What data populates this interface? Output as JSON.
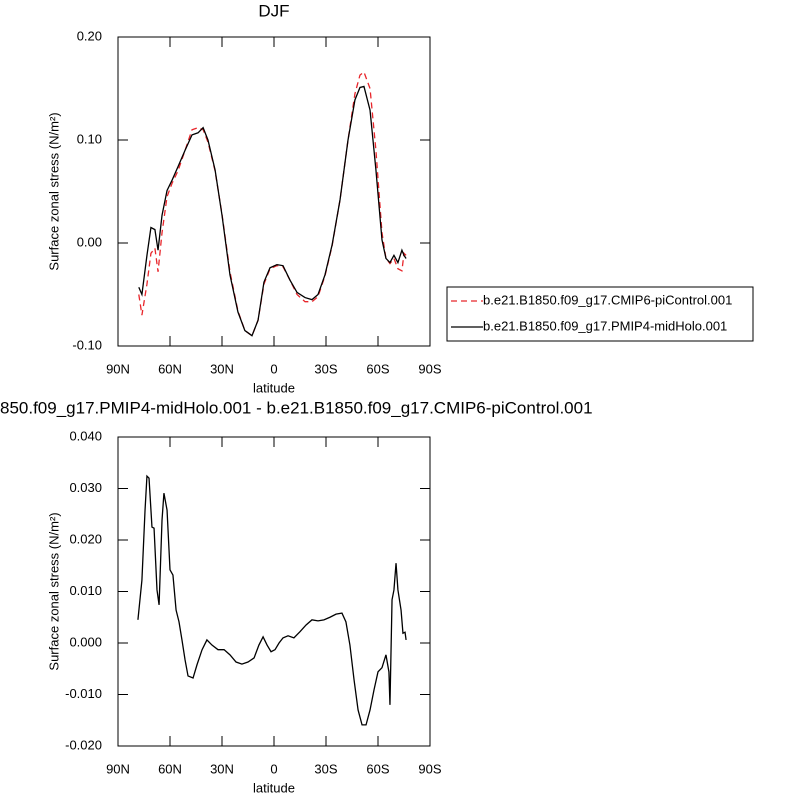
{
  "chart_data": [
    {
      "type": "line",
      "title": "DJF",
      "xlabel": "latitude",
      "ylabel": "Surface zonal stress (N/m²)",
      "x": [
        78,
        76.2,
        73.3,
        71,
        68.7,
        66.9,
        64.6,
        61.7,
        58.8,
        55.4,
        51.3,
        47.3,
        43.8,
        40.9,
        38.1,
        34,
        30,
        25.4,
        20.8,
        16.8,
        12.7,
        9.2,
        5.8,
        2.3,
        -1.7,
        -5.2,
        -9.2,
        -13.3,
        -17.9,
        -21.9,
        -25.4,
        -29.4,
        -33.5,
        -38.1,
        -42.7,
        -46.7,
        -49.6,
        -51.9,
        -55.4,
        -58.8,
        -62.3,
        -64.6,
        -66.9,
        -69.2,
        -71.5,
        -73.8,
        -75,
        -76.2
      ],
      "series": [
        {
          "name": "b.e21.B1850.f09_g17.CMIP6-piControl.001",
          "color": "#e8262b",
          "linestyle": "dashed",
          "values": [
            -0.05,
            -0.07,
            -0.04,
            -0.01,
            -0.005,
            -0.028,
            0.01,
            0.045,
            0.058,
            0.07,
            0.09,
            0.11,
            0.112,
            0.11,
            0.098,
            0.07,
            0.028,
            -0.028,
            -0.066,
            -0.085,
            -0.09,
            -0.075,
            -0.04,
            -0.025,
            -0.022,
            -0.023,
            -0.036,
            -0.05,
            -0.057,
            -0.057,
            -0.052,
            -0.032,
            -0.003,
            0.042,
            0.1,
            0.145,
            0.163,
            0.166,
            0.15,
            0.09,
            0.01,
            -0.015,
            -0.02,
            -0.015,
            -0.025,
            -0.027,
            -0.01,
            -0.012
          ]
        },
        {
          "name": "b.e21.B1850.f09_g17.PMIP4-midHolo.001",
          "color": "#000000",
          "linestyle": "solid",
          "values": [
            -0.043,
            -0.05,
            -0.012,
            0.015,
            0.013,
            -0.007,
            0.027,
            0.051,
            0.061,
            0.074,
            0.09,
            0.105,
            0.107,
            0.112,
            0.1,
            0.071,
            0.027,
            -0.031,
            -0.067,
            -0.085,
            -0.09,
            -0.075,
            -0.038,
            -0.024,
            -0.021,
            -0.022,
            -0.036,
            -0.048,
            -0.053,
            -0.055,
            -0.05,
            -0.031,
            -0.002,
            0.042,
            0.1,
            0.139,
            0.151,
            0.152,
            0.129,
            0.071,
            0.003,
            -0.015,
            -0.019,
            -0.012,
            -0.019,
            -0.007,
            -0.012,
            -0.015
          ]
        }
      ],
      "xlim": [
        90,
        -90
      ],
      "xticks": [
        {
          "value": 90,
          "label": "90N"
        },
        {
          "value": 60,
          "label": "60N"
        },
        {
          "value": 30,
          "label": "30N"
        },
        {
          "value": 0,
          "label": "0"
        },
        {
          "value": -30,
          "label": "30S"
        },
        {
          "value": -60,
          "label": "60S"
        },
        {
          "value": -90,
          "label": "90S"
        }
      ],
      "ylim": [
        -0.1,
        0.2
      ],
      "yticks": [
        {
          "value": -0.1,
          "label": "-0.10"
        },
        {
          "value": 0,
          "label": "0.00"
        },
        {
          "value": 0.1,
          "label": "0.10"
        },
        {
          "value": 0.2,
          "label": "0.20"
        }
      ],
      "legend": "right"
    },
    {
      "type": "line",
      "title": "850.f09_g17.PMIP4-midHolo.001 - b.e21.B1850.f09_g17.CMIP6-piControl.001",
      "xlabel": "latitude",
      "ylabel": "Surface zonal stress (N/m²)",
      "x": [
        78.5,
        76.2,
        74.4,
        73.3,
        72.1,
        70.4,
        69.2,
        67.5,
        66.3,
        64.6,
        63.5,
        61.7,
        60,
        58.3,
        56.5,
        54.8,
        53.1,
        51.3,
        49.6,
        46.7,
        44.4,
        41.5,
        38.7,
        35.8,
        32.3,
        28.8,
        25.4,
        21.9,
        18.5,
        15,
        11.5,
        8.7,
        6.3,
        4,
        1.7,
        -0.6,
        -2.9,
        -5.2,
        -8.1,
        -11.5,
        -15,
        -18.5,
        -21.9,
        -25.4,
        -28.8,
        -32.3,
        -35.8,
        -39.2,
        -41.5,
        -43.8,
        -46.2,
        -48.5,
        -50.8,
        -53.1,
        -55.4,
        -57.7,
        -60,
        -62.3,
        -64.6,
        -66.3,
        -66.9,
        -68.1,
        -69.2,
        -70.4,
        -71.5,
        -73.3,
        -74.4,
        -75.6,
        -76.2
      ],
      "values": [
        0.0045,
        0.0122,
        0.0258,
        0.0324,
        0.032,
        0.0225,
        0.0223,
        0.0103,
        0.0074,
        0.0239,
        0.0291,
        0.0258,
        0.0142,
        0.0132,
        0.0064,
        0.0041,
        0.0006,
        -0.0033,
        -0.0064,
        -0.0068,
        -0.0042,
        -0.0013,
        0.0006,
        -0.0004,
        -0.0013,
        -0.0013,
        -0.0023,
        -0.0037,
        -0.0041,
        -0.0037,
        -0.0029,
        -0.0004,
        0.0012,
        -0.0004,
        -0.0017,
        -0.0013,
        0.0,
        0.001,
        0.0014,
        0.001,
        0.0022,
        0.0035,
        0.0045,
        0.0043,
        0.0045,
        0.005,
        0.0056,
        0.0058,
        0.0041,
        -0.0004,
        -0.0072,
        -0.013,
        -0.0159,
        -0.0159,
        -0.013,
        -0.0091,
        -0.0056,
        -0.0048,
        -0.0023,
        -0.0056,
        -0.012,
        0.0084,
        0.0103,
        0.0155,
        0.0103,
        0.0064,
        0.0019,
        0.0021,
        0.0006
      ],
      "color": "#000000",
      "xlim": [
        90,
        -90
      ],
      "xticks": [
        {
          "value": 90,
          "label": "90N"
        },
        {
          "value": 60,
          "label": "60N"
        },
        {
          "value": 30,
          "label": "30N"
        },
        {
          "value": 0,
          "label": "0"
        },
        {
          "value": -30,
          "label": "30S"
        },
        {
          "value": -60,
          "label": "60S"
        },
        {
          "value": -90,
          "label": "90S"
        }
      ],
      "ylim": [
        -0.02,
        0.04
      ],
      "yticks": [
        {
          "value": -0.02,
          "label": "-0.020"
        },
        {
          "value": -0.01,
          "label": "-0.010"
        },
        {
          "value": 0,
          "label": "0.000"
        },
        {
          "value": 0.01,
          "label": "0.010"
        },
        {
          "value": 0.02,
          "label": "0.020"
        },
        {
          "value": 0.03,
          "label": "0.030"
        },
        {
          "value": 0.04,
          "label": "0.040"
        }
      ]
    }
  ]
}
